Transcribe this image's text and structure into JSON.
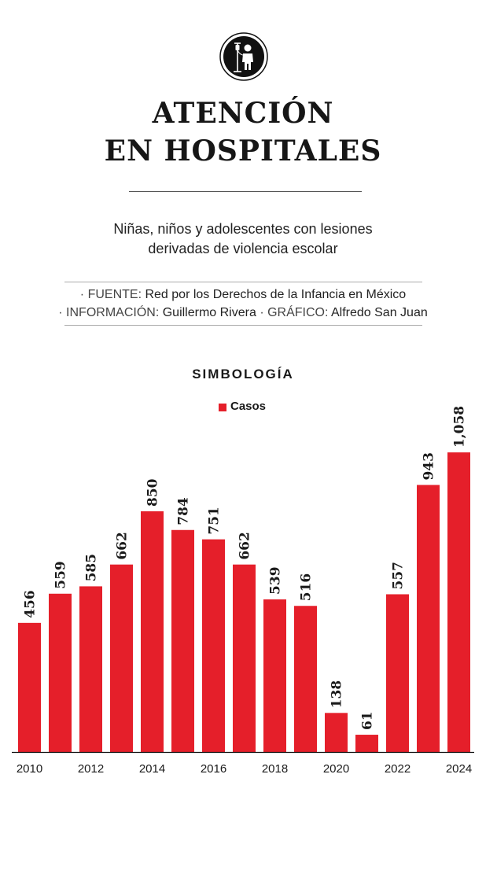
{
  "header": {
    "logo_icon": "child-with-iv-drip-icon",
    "title_line1": "ATENCIÓN",
    "title_line2": "EN HOSPITALES",
    "subtitle_line1": "Niñas, niños y adolescentes con lesiones",
    "subtitle_line2": "derivadas de violencia escolar"
  },
  "credits": {
    "source_label": "· FUENTE:",
    "source_value": "Red por los Derechos de la Infancia en México",
    "info_label": "· INFORMACIÓN:",
    "info_value": "Guillermo Rivera",
    "graphic_label": "· GRÁFICO:",
    "graphic_value": "Alfredo San Juan"
  },
  "legend": {
    "title": "SIMBOLOGÍA",
    "series_label": "Casos"
  },
  "chart_data": {
    "type": "bar",
    "title": "ATENCIÓN EN HOSPITALES",
    "subtitle": "Niñas, niños y adolescentes con lesiones derivadas de violencia escolar",
    "categories": [
      "2010",
      "2011",
      "2012",
      "2013",
      "2014",
      "2015",
      "2016",
      "2017",
      "2018",
      "2019",
      "2020",
      "2021",
      "2022",
      "2023",
      "2024"
    ],
    "tick_labels": [
      "2010",
      "2012",
      "2014",
      "2016",
      "2018",
      "2020",
      "2022",
      "2024"
    ],
    "data_labels": [
      "456",
      "559",
      "585",
      "662",
      "850",
      "784",
      "751",
      "662",
      "539",
      "516",
      "138",
      "61",
      "557",
      "943",
      "1,058"
    ],
    "series": [
      {
        "name": "Casos",
        "values": [
          456,
          559,
          585,
          662,
          850,
          784,
          751,
          662,
          539,
          516,
          138,
          61,
          557,
          943,
          1058
        ],
        "color": "#e51f2a"
      }
    ],
    "ylim": [
      0,
      1100
    ],
    "grid": false,
    "legend_position": "top-center"
  }
}
